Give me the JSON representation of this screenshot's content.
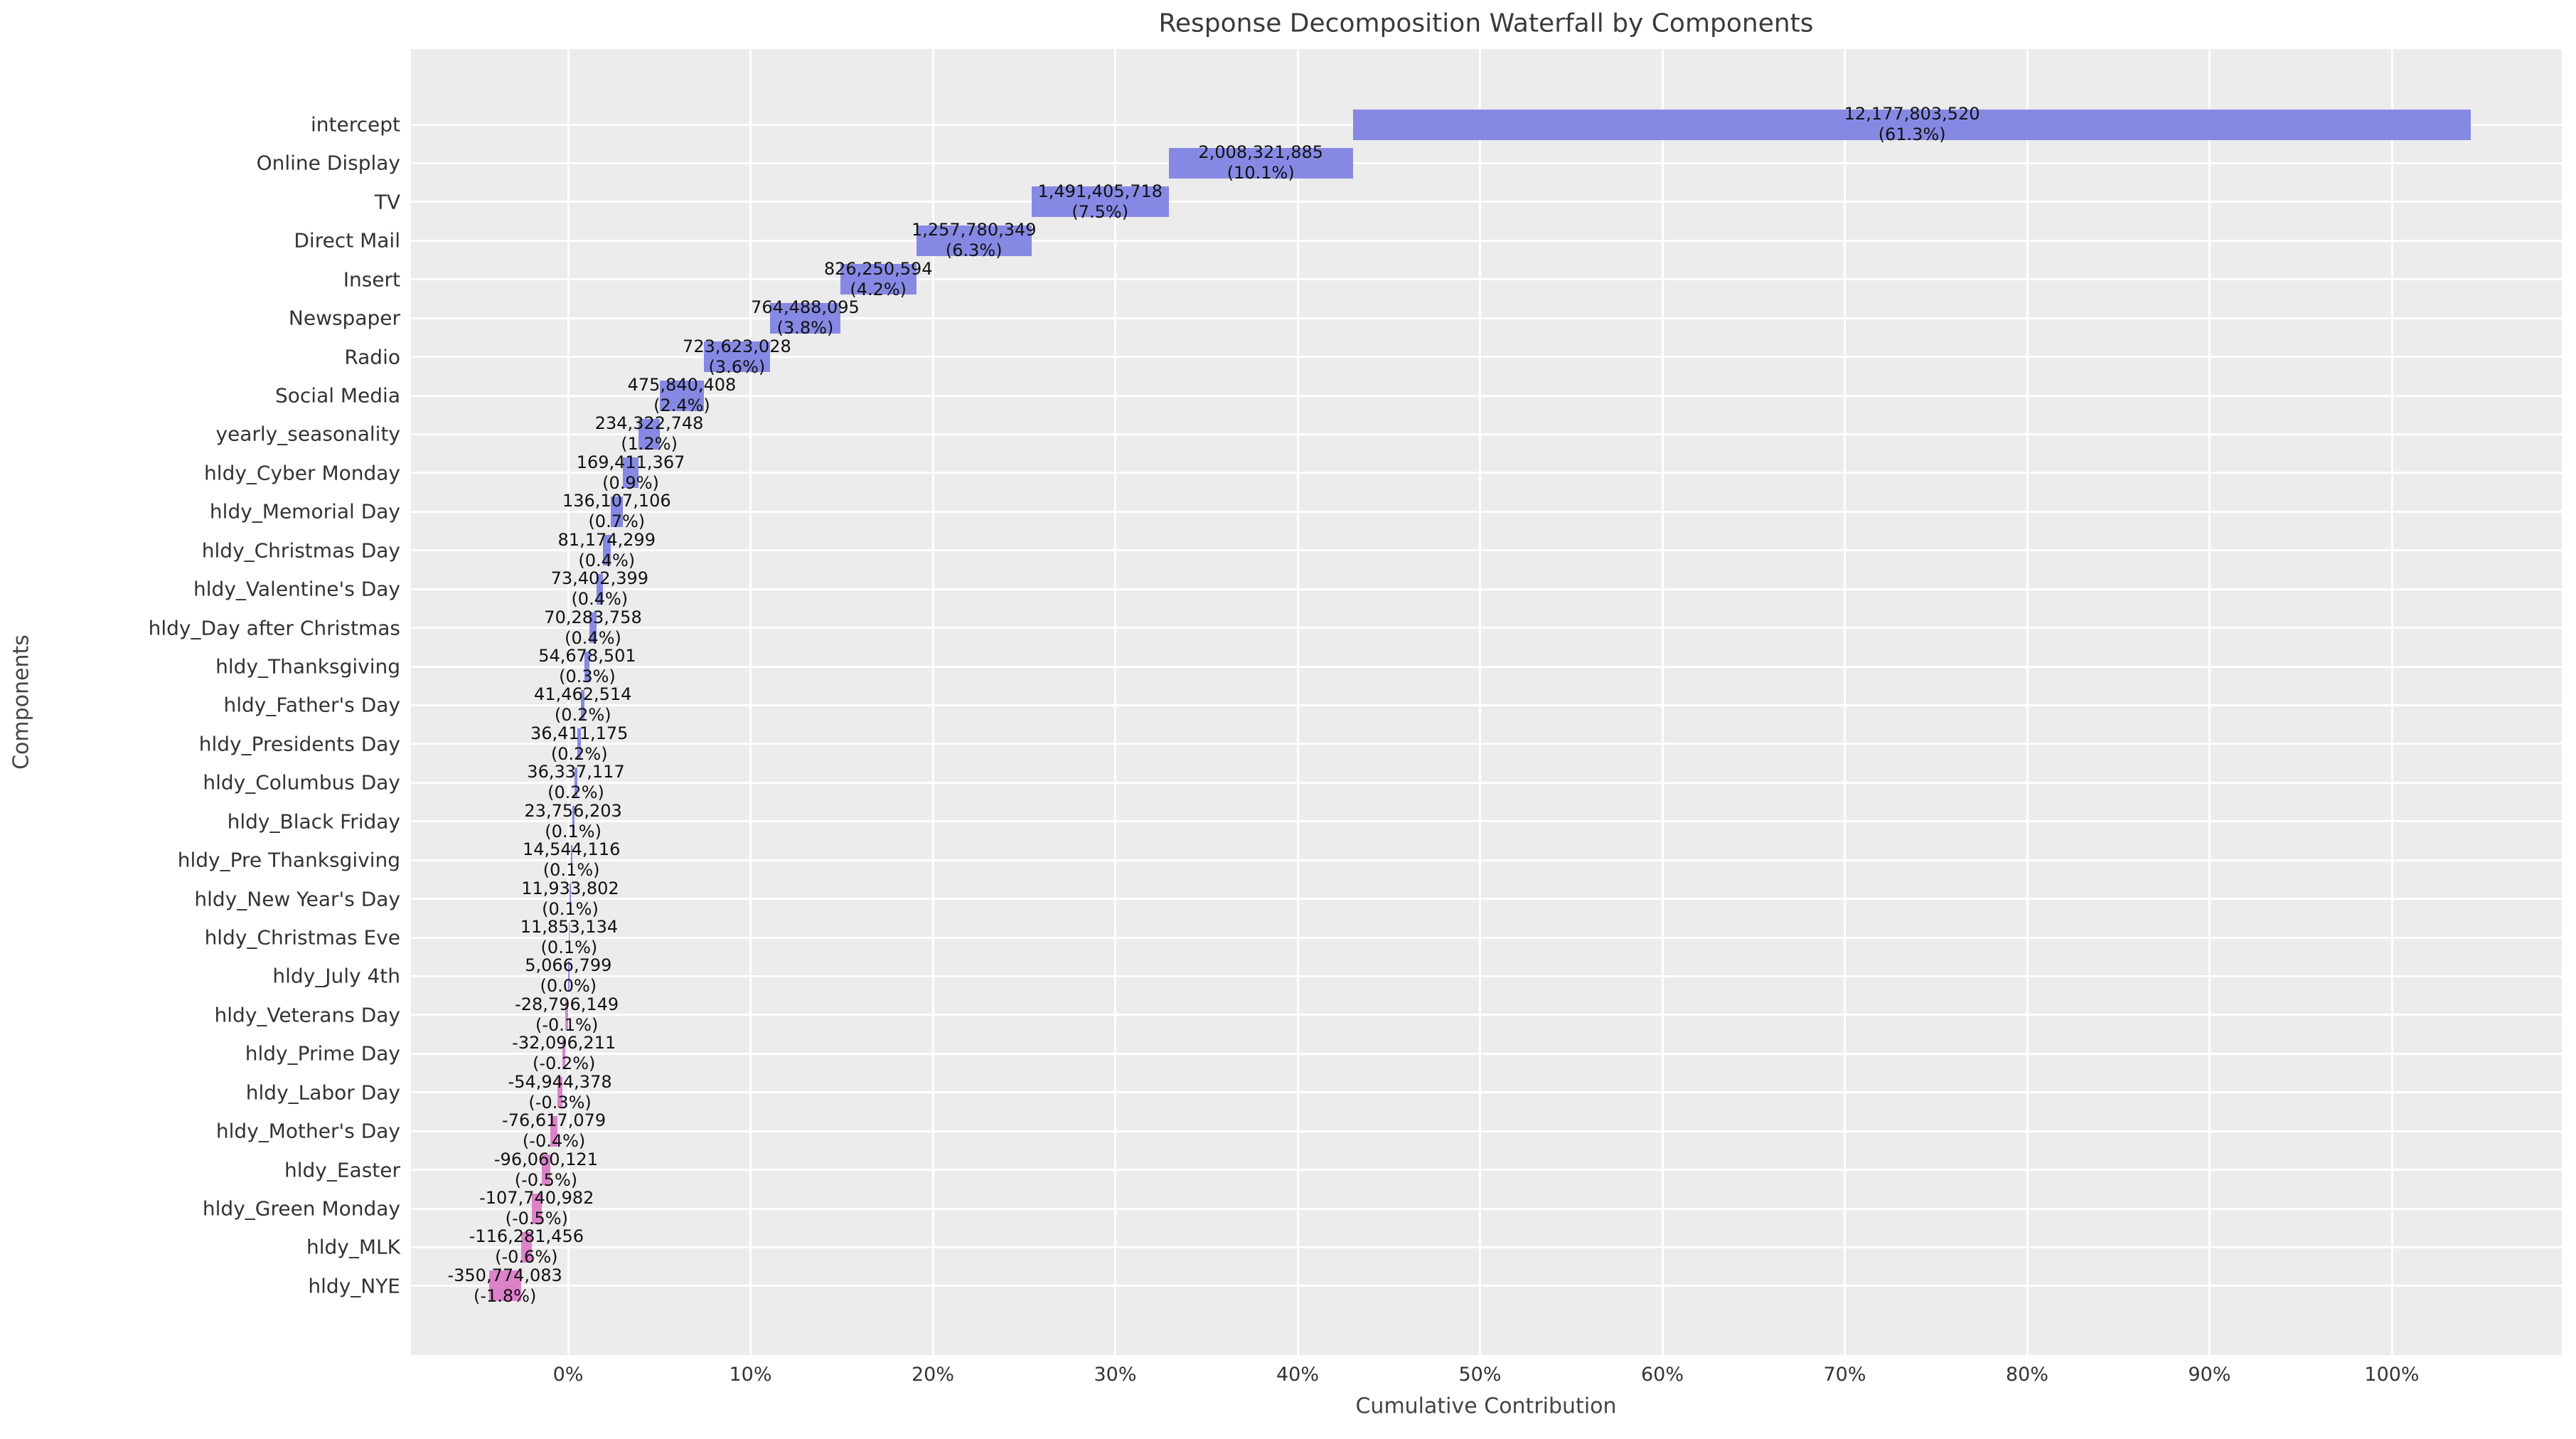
{
  "chart_data": {
    "type": "bar",
    "subtype": "horizontal-waterfall",
    "title": "Response Decomposition Waterfall by Components",
    "xlabel": "Cumulative Contribution",
    "ylabel": "Components",
    "grid": true,
    "legend": "none",
    "plot_background": "#ececec",
    "gridline_color": "#ffffff",
    "positive_color": "#8689e4",
    "negative_color": "#dc82c8",
    "label_text_color": "#111111",
    "xlim_pct": [
      -8.6,
      109.3
    ],
    "x_tick_values": [
      0,
      10,
      20,
      30,
      40,
      50,
      60,
      70,
      80,
      90,
      100
    ],
    "x_tick_labels": [
      "0%",
      "10%",
      "20%",
      "30%",
      "40%",
      "50%",
      "60%",
      "70%",
      "80%",
      "90%",
      "100%"
    ],
    "waterfall_note": "bars accumulate top to bottom; each bar's right edge equals the bar above's left edge; intercept right edge = sum of positive shares (~104.3%)",
    "components": [
      {
        "label": "intercept",
        "value": 12177803520,
        "value_label": "12,177,803,520",
        "pct_label": "(61.3%)"
      },
      {
        "label": "Online Display",
        "value": 2008321885,
        "value_label": "2,008,321,885",
        "pct_label": "(10.1%)"
      },
      {
        "label": "TV",
        "value": 1491405718,
        "value_label": "1,491,405,718",
        "pct_label": "(7.5%)"
      },
      {
        "label": "Direct Mail",
        "value": 1257780349,
        "value_label": "1,257,780,349",
        "pct_label": "(6.3%)"
      },
      {
        "label": "Insert",
        "value": 826250594,
        "value_label": "826,250,594",
        "pct_label": "(4.2%)"
      },
      {
        "label": "Newspaper",
        "value": 764488095,
        "value_label": "764,488,095",
        "pct_label": "(3.8%)"
      },
      {
        "label": "Radio",
        "value": 723623028,
        "value_label": "723,623,028",
        "pct_label": "(3.6%)"
      },
      {
        "label": "Social Media",
        "value": 475840408,
        "value_label": "475,840,408",
        "pct_label": "(2.4%)"
      },
      {
        "label": "yearly_seasonality",
        "value": 234322748,
        "value_label": "234,322,748",
        "pct_label": "(1.2%)"
      },
      {
        "label": "hldy_Cyber Monday",
        "value": 169411367,
        "value_label": "169,411,367",
        "pct_label": "(0.9%)"
      },
      {
        "label": "hldy_Memorial Day",
        "value": 136107106,
        "value_label": "136,107,106",
        "pct_label": "(0.7%)"
      },
      {
        "label": "hldy_Christmas Day",
        "value": 81174299,
        "value_label": "81,174,299",
        "pct_label": "(0.4%)"
      },
      {
        "label": "hldy_Valentine's Day",
        "value": 73402399,
        "value_label": "73,402,399",
        "pct_label": "(0.4%)"
      },
      {
        "label": "hldy_Day after Christmas",
        "value": 70283758,
        "value_label": "70,283,758",
        "pct_label": "(0.4%)"
      },
      {
        "label": "hldy_Thanksgiving",
        "value": 54678501,
        "value_label": "54,678,501",
        "pct_label": "(0.3%)"
      },
      {
        "label": "hldy_Father's Day",
        "value": 41462514,
        "value_label": "41,462,514",
        "pct_label": "(0.2%)"
      },
      {
        "label": "hldy_Presidents Day",
        "value": 36411175,
        "value_label": "36,411,175",
        "pct_label": "(0.2%)"
      },
      {
        "label": "hldy_Columbus Day",
        "value": 36337117,
        "value_label": "36,337,117",
        "pct_label": "(0.2%)"
      },
      {
        "label": "hldy_Black Friday",
        "value": 23756203,
        "value_label": "23,756,203",
        "pct_label": "(0.1%)"
      },
      {
        "label": "hldy_Pre Thanksgiving",
        "value": 14544116,
        "value_label": "14,544,116",
        "pct_label": "(0.1%)"
      },
      {
        "label": "hldy_New Year's Day",
        "value": 11933802,
        "value_label": "11,933,802",
        "pct_label": "(0.1%)"
      },
      {
        "label": "hldy_Christmas Eve",
        "value": 11853134,
        "value_label": "11,853,134",
        "pct_label": "(0.1%)"
      },
      {
        "label": "hldy_July 4th",
        "value": 5066799,
        "value_label": "5,066,799",
        "pct_label": "(0.0%)"
      },
      {
        "label": "hldy_Veterans Day",
        "value": -28796149,
        "value_label": "-28,796,149",
        "pct_label": "(-0.1%)"
      },
      {
        "label": "hldy_Prime Day",
        "value": -32096211,
        "value_label": "-32,096,211",
        "pct_label": "(-0.2%)"
      },
      {
        "label": "hldy_Labor Day",
        "value": -54944378,
        "value_label": "-54,944,378",
        "pct_label": "(-0.3%)"
      },
      {
        "label": "hldy_Mother's Day",
        "value": -76617079,
        "value_label": "-76,617,079",
        "pct_label": "(-0.4%)"
      },
      {
        "label": "hldy_Easter",
        "value": -96060121,
        "value_label": "-96,060,121",
        "pct_label": "(-0.5%)"
      },
      {
        "label": "hldy_Green Monday",
        "value": -107740982,
        "value_label": "-107,740,982",
        "pct_label": "(-0.5%)"
      },
      {
        "label": "hldy_MLK",
        "value": -116281456,
        "value_label": "-116,281,456",
        "pct_label": "(-0.6%)"
      },
      {
        "label": "hldy_NYE",
        "value": -350774083,
        "value_label": "-350,774,083",
        "pct_label": "(-1.8%)"
      }
    ]
  }
}
